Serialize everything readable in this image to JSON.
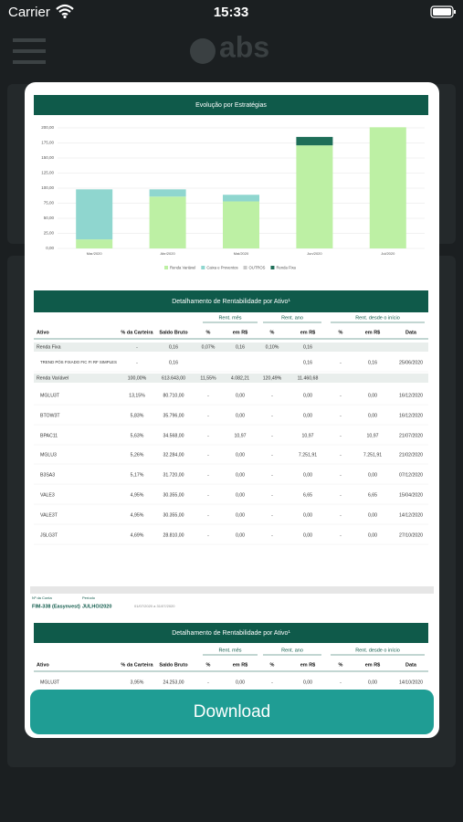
{
  "status_bar": {
    "carrier": "Carrier",
    "time": "15:33"
  },
  "app_header": {
    "logo": "abs"
  },
  "chart_data": {
    "type": "bar",
    "stacked": true,
    "title": "Evolução por Estratégias",
    "categories": [
      "Mar/2020",
      "Abr/2020",
      "Mai/2020",
      "Jun/2020",
      "Jul/2020"
    ],
    "series": [
      {
        "name": "Renda Variável",
        "color": "#bdf0a4",
        "values": [
          15,
          86,
          78,
          171,
          201
        ]
      },
      {
        "name": "Caixa e Proventos",
        "color": "#8fd6cf",
        "values": [
          83,
          12,
          11,
          0,
          0
        ]
      },
      {
        "name": "OUTROS",
        "color": "#c8c8c8",
        "values": [
          0,
          0,
          0,
          0,
          0
        ]
      },
      {
        "name": "Renda Fixa",
        "color": "#1e6e58",
        "values": [
          0,
          0,
          0,
          14,
          0
        ]
      }
    ],
    "ylim": [
      0,
      200
    ],
    "yticks": [
      {
        "value": 0,
        "label": "0,00"
      },
      {
        "value": 25,
        "label": "25,00"
      },
      {
        "value": 50,
        "label": "50,00"
      },
      {
        "value": 75,
        "label": "75,00"
      },
      {
        "value": 100,
        "label": "100,00"
      },
      {
        "value": 125,
        "label": "125,00"
      },
      {
        "value": 150,
        "label": "150,00"
      },
      {
        "value": 175,
        "label": "175,00"
      },
      {
        "value": 200,
        "label": "200,00"
      }
    ],
    "grid": true,
    "legend": "bottom"
  },
  "table1": {
    "title": "Detalhamento de Rentabilidade por Ativo¹",
    "group_headers": [
      "Rent. mês",
      "Rent. ano",
      "Rent. desde o início"
    ],
    "columns": [
      "Ativo",
      "% da Carteira",
      "Saldo Bruto",
      "%",
      "em R$",
      "%",
      "em R$",
      "%",
      "em R$",
      "Data"
    ],
    "rows": [
      [
        "Renda Fixa",
        "-",
        "0,16",
        "0,07%",
        "0,16",
        "0,10%",
        "0,16",
        null,
        null,
        null
      ],
      [
        "TREND PÓS FIXADO FIC FI RF SIMPLES",
        "-",
        "0,16",
        null,
        null,
        null,
        "0,16",
        "-",
        "0,16",
        "25/06/2020"
      ],
      [
        "Renda Variável",
        "100,00%",
        "613.643,00",
        "11,55%",
        "4.082,21",
        "120,49%",
        "11.460,68",
        null,
        null,
        null
      ],
      [
        "MGLU3T",
        "13,15%",
        "80.710,00",
        "-",
        "0,00",
        "-",
        "0,00",
        "-",
        "0,00",
        "16/12/2020"
      ],
      [
        "BTOW3T",
        "5,83%",
        "35.796,00",
        "-",
        "0,00",
        "-",
        "0,00",
        "-",
        "0,00",
        "16/12/2020"
      ],
      [
        "BPAC11",
        "5,63%",
        "34.568,00",
        "-",
        "10,97",
        "-",
        "10,97",
        "-",
        "10,97",
        "21/07/2020"
      ],
      [
        "MGLU3",
        "5,26%",
        "32.284,00",
        "-",
        "0,00",
        "-",
        "7.251,91",
        "-",
        "7.251,91",
        "21/02/2020"
      ],
      [
        "B3SA3",
        "5,17%",
        "31.720,00",
        "-",
        "0,00",
        "-",
        "0,00",
        "-",
        "0,00",
        "07/12/2020"
      ],
      [
        "VALE3",
        "4,95%",
        "30.355,00",
        "-",
        "0,00",
        "-",
        "6,65",
        "-",
        "6,65",
        "15/04/2020"
      ],
      [
        "VALE3T",
        "4,95%",
        "30.355,00",
        "-",
        "0,00",
        "-",
        "0,00",
        "-",
        "0,00",
        "14/12/2020"
      ],
      [
        "JSLG3T",
        "4,69%",
        "28.810,00",
        "-",
        "0,00",
        "-",
        "0,00",
        "-",
        "0,00",
        "27/10/2020"
      ]
    ]
  },
  "account": {
    "account_label": "Nº da Conta",
    "period_label": "Período",
    "account": "FIM-338 (Easynvest)",
    "period": "JULHO/2020",
    "range": "01/07/2020 a 31/07/2020"
  },
  "table2": {
    "title": "Detalhamento de Rentabilidade por Ativo¹",
    "group_headers": [
      "Rent. mês",
      "Rent. ano",
      "Rent. desde o início"
    ],
    "columns": [
      "Ativo",
      "% da Carteira",
      "Saldo Bruto",
      "%",
      "em R$",
      "%",
      "em R$",
      "%",
      "em R$",
      "Data"
    ],
    "rows": [
      [
        "MGLU3T",
        "3,95%",
        "24.253,00",
        "-",
        "0,00",
        "-",
        "0,00",
        "-",
        "0,00",
        "14/10/2020"
      ]
    ]
  },
  "download_button": "Download"
}
